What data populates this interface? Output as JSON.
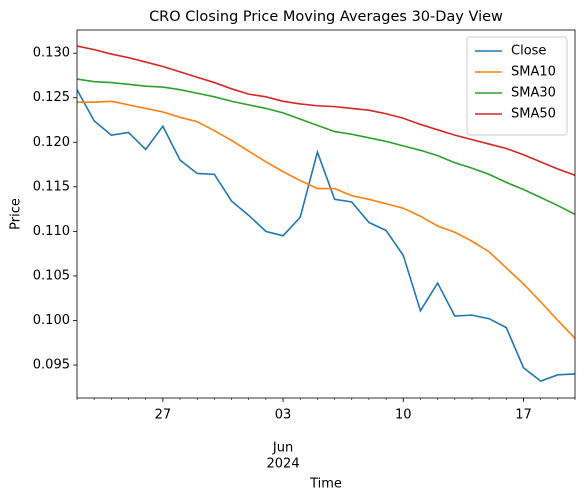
{
  "chart_data": {
    "type": "line",
    "title": "CRO Closing Price Moving Averages 30-Day View",
    "xlabel": "Time",
    "ylabel": "Price",
    "x": [
      "2024-05-22",
      "2024-05-23",
      "2024-05-24",
      "2024-05-25",
      "2024-05-26",
      "2024-05-27",
      "2024-05-28",
      "2024-05-29",
      "2024-05-30",
      "2024-05-31",
      "2024-06-01",
      "2024-06-02",
      "2024-06-03",
      "2024-06-04",
      "2024-06-05",
      "2024-06-06",
      "2024-06-07",
      "2024-06-08",
      "2024-06-09",
      "2024-06-10",
      "2024-06-11",
      "2024-06-12",
      "2024-06-13",
      "2024-06-14",
      "2024-06-15",
      "2024-06-16",
      "2024-06-17",
      "2024-06-18",
      "2024-06-19",
      "2024-06-20"
    ],
    "series": [
      {
        "name": "Close",
        "color": "#1f77b4",
        "values": [
          0.1259,
          0.1224,
          0.1208,
          0.1211,
          0.1192,
          0.1218,
          0.118,
          0.1165,
          0.1164,
          0.1134,
          0.1118,
          0.11,
          0.1095,
          0.1116,
          0.1189,
          0.1136,
          0.1133,
          0.111,
          0.1101,
          0.1073,
          0.1011,
          0.1042,
          0.1005,
          0.1006,
          0.1002,
          0.0992,
          0.0947,
          0.0932,
          0.0939,
          0.094
        ]
      },
      {
        "name": "SMA10",
        "color": "#ff7f0e",
        "values": [
          0.1245,
          0.1245,
          0.1246,
          0.1242,
          0.1238,
          0.1234,
          0.1228,
          0.1223,
          0.1213,
          0.1202,
          0.119,
          0.1178,
          0.1167,
          0.1157,
          0.1148,
          0.1148,
          0.114,
          0.1136,
          0.1131,
          0.1126,
          0.1117,
          0.1106,
          0.1099,
          0.1089,
          0.1077,
          0.1059,
          0.1041,
          0.1021,
          0.1,
          0.098
        ]
      },
      {
        "name": "SMA30",
        "color": "#2ca02c",
        "values": [
          0.1271,
          0.1268,
          0.1267,
          0.1265,
          0.1263,
          0.1262,
          0.1259,
          0.1255,
          0.1251,
          0.1246,
          0.1242,
          0.1238,
          0.1233,
          0.1226,
          0.1219,
          0.1212,
          0.1209,
          0.1205,
          0.1201,
          0.1196,
          0.1191,
          0.1185,
          0.1177,
          0.1171,
          0.1164,
          0.1155,
          0.1147,
          0.1138,
          0.1129,
          0.1119
        ]
      },
      {
        "name": "SMA50",
        "color": "#d62728",
        "values": [
          0.1308,
          0.1304,
          0.1299,
          0.1295,
          0.129,
          0.1285,
          0.1279,
          0.1273,
          0.1267,
          0.126,
          0.1254,
          0.1251,
          0.1246,
          0.1243,
          0.1241,
          0.124,
          0.1238,
          0.1236,
          0.1232,
          0.1227,
          0.122,
          0.1214,
          0.1208,
          0.1203,
          0.1198,
          0.1193,
          0.1186,
          0.1178,
          0.117,
          0.1163
        ]
      }
    ],
    "xlim": [
      "2024-05-22",
      "2024-06-20"
    ],
    "xticks": [
      {
        "value": "2024-05-27",
        "label": "27"
      },
      {
        "value": "2024-06-03",
        "label": "03"
      },
      {
        "value": "2024-06-10",
        "label": "10"
      },
      {
        "value": "2024-06-17",
        "label": "17"
      }
    ],
    "xticks_secondary": [
      {
        "value": "2024-06-03",
        "label": [
          "Jun",
          "2024"
        ]
      }
    ],
    "ylim": [
      0.0913,
      0.1326
    ],
    "yticks": [
      0.095,
      {
        "value": 0.1,
        "label": "0.100"
      },
      0.105,
      {
        "value": 0.11,
        "label": "0.110"
      },
      0.115,
      {
        "value": 0.12,
        "label": "0.120"
      },
      0.125,
      {
        "value": 0.13,
        "label": "0.130"
      }
    ],
    "legend": "upper right",
    "grid": false
  }
}
